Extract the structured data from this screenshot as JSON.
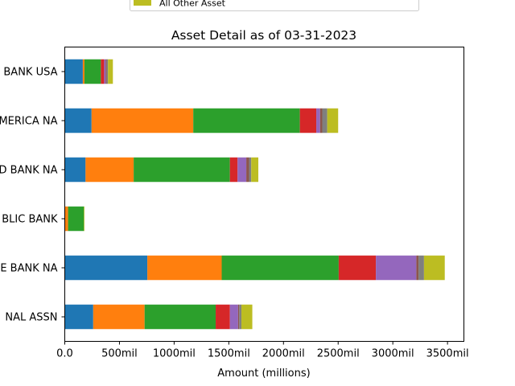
{
  "chart_data": {
    "type": "bar",
    "orientation": "horizontal",
    "stacked": true,
    "title": "Asset Detail as of 03-31-2023",
    "xlabel": "Amount (millions)",
    "ylabel": "",
    "xlim": [
      0,
      3650
    ],
    "xticks": [
      0,
      500,
      1000,
      1500,
      2000,
      2500,
      3000,
      3500
    ],
    "xtick_labels": [
      "0.0",
      "500mil",
      "1000mil",
      "1500mil",
      "2000mil",
      "2500mil",
      "3000mil",
      "3500mil"
    ],
    "grid": false,
    "legend_position": "top-center",
    "categories": [
      "BANK USA",
      "MERICA NA",
      "D BANK NA",
      "BLIC BANK",
      "E BANK NA",
      "NAL ASSN"
    ],
    "series": [
      {
        "color": "#1f77b4",
        "values": [
          165,
          245,
          190,
          0,
          755,
          260
        ]
      },
      {
        "color": "#ff7f0e",
        "values": [
          15,
          930,
          440,
          30,
          680,
          470
        ]
      },
      {
        "color": "#2ca02c",
        "values": [
          150,
          975,
          880,
          145,
          1070,
          650
        ]
      },
      {
        "color": "#d62728",
        "values": [
          30,
          150,
          70,
          0,
          340,
          130
        ]
      },
      {
        "color": "#9467bd",
        "values": [
          15,
          35,
          80,
          0,
          370,
          75
        ]
      },
      {
        "color": "#8c564b",
        "values": [
          10,
          20,
          25,
          0,
          20,
          10
        ]
      },
      {
        "color": "#7f7f7f",
        "values": [
          10,
          45,
          20,
          0,
          50,
          20
        ]
      },
      {
        "name": "All Other Asset",
        "color": "#bcbd22",
        "values": [
          45,
          100,
          65,
          5,
          190,
          100
        ]
      }
    ]
  }
}
